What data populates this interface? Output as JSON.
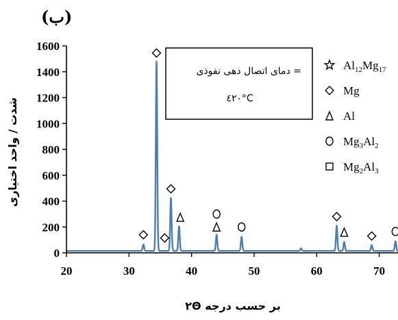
{
  "panel_label": "(ب)",
  "chart_data": {
    "type": "line",
    "xlabel": "۲Θ بر حسب درجه",
    "ylabel": "شدت / واحد اختیاری",
    "xlim": [
      20,
      73
    ],
    "ylim": [
      0,
      1600
    ],
    "xticks": [
      20,
      30,
      40,
      50,
      60,
      70
    ],
    "yticks": [
      0,
      200,
      400,
      600,
      800,
      1000,
      1200,
      1400,
      1600
    ],
    "line_color": "#4a7ebb",
    "baseline": 15,
    "peaks": [
      {
        "x": 32.3,
        "y": 65
      },
      {
        "x": 34.4,
        "y": 1480
      },
      {
        "x": 36.7,
        "y": 425
      },
      {
        "x": 38.0,
        "y": 205
      },
      {
        "x": 44.0,
        "y": 140
      },
      {
        "x": 48.0,
        "y": 125
      },
      {
        "x": 57.5,
        "y": 35
      },
      {
        "x": 63.2,
        "y": 210
      },
      {
        "x": 64.4,
        "y": 85
      },
      {
        "x": 68.8,
        "y": 60
      },
      {
        "x": 72.6,
        "y": 90
      }
    ],
    "annotations": [
      {
        "x": 32.3,
        "y": 140,
        "marker": "diamond"
      },
      {
        "x": 34.4,
        "y": 1545,
        "marker": "diamond"
      },
      {
        "x": 35.7,
        "y": 115,
        "marker": "diamond"
      },
      {
        "x": 36.7,
        "y": 495,
        "marker": "diamond"
      },
      {
        "x": 38.2,
        "y": 275,
        "marker": "triangle"
      },
      {
        "x": 44.0,
        "y": 300,
        "marker": "circle"
      },
      {
        "x": 44.0,
        "y": 200,
        "marker": "triangle"
      },
      {
        "x": 48.0,
        "y": 200,
        "marker": "circle"
      },
      {
        "x": 63.2,
        "y": 280,
        "marker": "diamond"
      },
      {
        "x": 64.4,
        "y": 160,
        "marker": "triangle"
      },
      {
        "x": 68.8,
        "y": 130,
        "marker": "diamond"
      },
      {
        "x": 72.6,
        "y": 165,
        "marker": "circle"
      }
    ],
    "note": {
      "line1": "دمای اتصال دهی نفوذی =",
      "line2": "٤۲۰°C"
    },
    "legend": [
      {
        "marker": "star",
        "label": "Al",
        "sub1": "12",
        "mid": "Mg",
        "sub2": "17"
      },
      {
        "marker": "diamond",
        "label": "Mg",
        "sub1": "",
        "mid": "",
        "sub2": ""
      },
      {
        "marker": "triangle",
        "label": "Al",
        "sub1": "",
        "mid": "",
        "sub2": ""
      },
      {
        "marker": "circle",
        "label": "Mg",
        "sub1": "3",
        "mid": "Al",
        "sub2": "2"
      },
      {
        "marker": "square",
        "label": "Mg",
        "sub1": "2",
        "mid": "Al",
        "sub2": "3"
      }
    ]
  }
}
